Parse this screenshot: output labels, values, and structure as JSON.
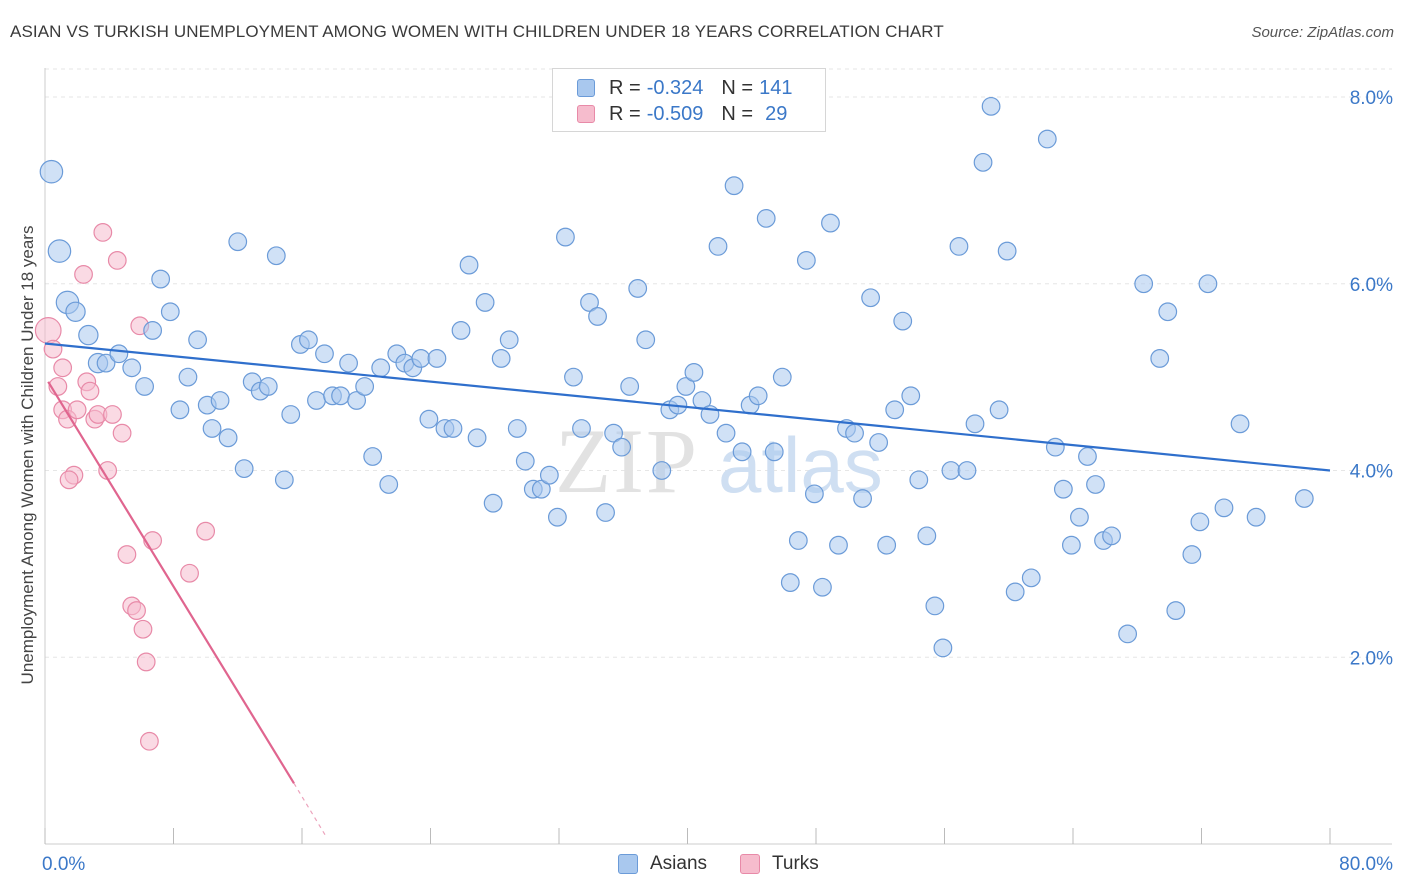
{
  "title": "ASIAN VS TURKISH UNEMPLOYMENT AMONG WOMEN WITH CHILDREN UNDER 18 YEARS CORRELATION CHART",
  "source": "Source: ZipAtlas.com",
  "watermark": {
    "zip": "ZIP",
    "atlas": "atlas"
  },
  "legend": {
    "r_label": "R = ",
    "n_label": "N = ",
    "asians": {
      "r": "-0.324",
      "n": "141"
    },
    "turks": {
      "r": "-0.509",
      "n": "29"
    }
  },
  "colors": {
    "asian_fill": "#a9c8ee",
    "asian_stroke": "#6b9bd8",
    "asian_line": "#2f6fcc",
    "turk_fill": "#f6bccd",
    "turk_stroke": "#e88aa8",
    "turk_line": "#e0658f",
    "axis_text": "#3b78c8"
  },
  "chart_data": {
    "type": "scatter",
    "title": "ASIAN VS TURKISH UNEMPLOYMENT AMONG WOMEN WITH CHILDREN UNDER 18 YEARS CORRELATION CHART",
    "xlabel": "",
    "ylabel": "Unemployment Among Women with Children Under 18 years",
    "xlim": [
      0,
      80
    ],
    "ylim": [
      0,
      8.3
    ],
    "x_tick_labels": [
      "0.0%",
      "80.0%"
    ],
    "y_ticks": [
      2,
      4,
      6,
      8
    ],
    "y_tick_labels": [
      "2.0%",
      "4.0%",
      "6.0%",
      "8.0%"
    ],
    "grid": true,
    "legend_entries": [
      "Asians",
      "Turks"
    ],
    "series": [
      {
        "name": "Asians",
        "trend": {
          "x": [
            0,
            80
          ],
          "y": [
            5.36,
            4.0
          ]
        },
        "points": [
          [
            0.4,
            7.2,
            14
          ],
          [
            0.9,
            6.35,
            14
          ],
          [
            1.4,
            5.8,
            14
          ],
          [
            1.9,
            5.7,
            12
          ],
          [
            2.7,
            5.45,
            12
          ],
          [
            3.3,
            5.15,
            12
          ],
          [
            3.8,
            5.15,
            11
          ],
          [
            4.6,
            5.25,
            11
          ],
          [
            5.4,
            5.1,
            11
          ],
          [
            6.2,
            4.9,
            11
          ],
          [
            6.7,
            5.5,
            11
          ],
          [
            7.2,
            6.05,
            11
          ],
          [
            7.8,
            5.7,
            11
          ],
          [
            8.4,
            4.65,
            11
          ],
          [
            8.9,
            5.0,
            11
          ],
          [
            9.5,
            5.4,
            11
          ],
          [
            10.1,
            4.7,
            11
          ],
          [
            10.4,
            4.45,
            11
          ],
          [
            10.9,
            4.75,
            11
          ],
          [
            11.4,
            4.35,
            11
          ],
          [
            12.0,
            6.45,
            11
          ],
          [
            12.4,
            4.02,
            11
          ],
          [
            12.9,
            4.95,
            11
          ],
          [
            13.4,
            4.85,
            11
          ],
          [
            13.9,
            4.9,
            11
          ],
          [
            14.4,
            6.3,
            11
          ],
          [
            14.9,
            3.9,
            11
          ],
          [
            15.3,
            4.6,
            11
          ],
          [
            15.9,
            5.35,
            11
          ],
          [
            16.4,
            5.4,
            11
          ],
          [
            16.9,
            4.75,
            11
          ],
          [
            17.4,
            5.25,
            11
          ],
          [
            17.9,
            4.8,
            11
          ],
          [
            18.4,
            4.8,
            11
          ],
          [
            18.9,
            5.15,
            11
          ],
          [
            19.4,
            4.75,
            11
          ],
          [
            19.9,
            4.9,
            11
          ],
          [
            20.4,
            4.15,
            11
          ],
          [
            20.9,
            5.1,
            11
          ],
          [
            21.4,
            3.85,
            11
          ],
          [
            21.9,
            5.25,
            11
          ],
          [
            22.4,
            5.15,
            11
          ],
          [
            22.9,
            5.1,
            11
          ],
          [
            23.4,
            5.2,
            11
          ],
          [
            23.9,
            4.55,
            11
          ],
          [
            24.4,
            5.2,
            11
          ],
          [
            24.9,
            4.45,
            11
          ],
          [
            25.4,
            4.45,
            11
          ],
          [
            25.9,
            5.5,
            11
          ],
          [
            26.4,
            6.2,
            11
          ],
          [
            26.9,
            4.35,
            11
          ],
          [
            27.4,
            5.8,
            11
          ],
          [
            27.9,
            3.65,
            11
          ],
          [
            28.4,
            5.2,
            11
          ],
          [
            28.9,
            5.4,
            11
          ],
          [
            29.4,
            4.45,
            11
          ],
          [
            29.9,
            4.1,
            11
          ],
          [
            30.4,
            3.8,
            11
          ],
          [
            30.9,
            3.8,
            11
          ],
          [
            31.4,
            3.95,
            11
          ],
          [
            31.9,
            3.5,
            11
          ],
          [
            32.4,
            6.5,
            11
          ],
          [
            32.9,
            5.0,
            11
          ],
          [
            33.4,
            4.45,
            11
          ],
          [
            33.9,
            5.8,
            11
          ],
          [
            34.4,
            5.65,
            11
          ],
          [
            34.9,
            3.55,
            11
          ],
          [
            35.4,
            4.4,
            11
          ],
          [
            35.9,
            4.25,
            11
          ],
          [
            36.4,
            4.9,
            11
          ],
          [
            36.9,
            5.95,
            11
          ],
          [
            37.4,
            5.4,
            11
          ],
          [
            38.4,
            4.0,
            11
          ],
          [
            38.9,
            4.65,
            11
          ],
          [
            39.4,
            4.7,
            11
          ],
          [
            39.9,
            4.9,
            11
          ],
          [
            40.4,
            5.05,
            11
          ],
          [
            40.9,
            4.75,
            11
          ],
          [
            41.4,
            4.6,
            11
          ],
          [
            41.9,
            6.4,
            11
          ],
          [
            42.4,
            4.4,
            11
          ],
          [
            42.9,
            7.05,
            11
          ],
          [
            43.4,
            4.2,
            11
          ],
          [
            43.9,
            4.7,
            11
          ],
          [
            44.4,
            4.8,
            11
          ],
          [
            44.9,
            6.7,
            11
          ],
          [
            45.4,
            4.2,
            11
          ],
          [
            45.9,
            5.0,
            11
          ],
          [
            46.4,
            2.8,
            11
          ],
          [
            46.9,
            3.25,
            11
          ],
          [
            47.4,
            6.25,
            11
          ],
          [
            47.9,
            3.75,
            11
          ],
          [
            48.4,
            2.75,
            11
          ],
          [
            48.9,
            6.65,
            11
          ],
          [
            49.4,
            3.2,
            11
          ],
          [
            49.9,
            4.45,
            11
          ],
          [
            50.4,
            4.4,
            11
          ],
          [
            50.9,
            3.7,
            11
          ],
          [
            51.4,
            5.85,
            11
          ],
          [
            51.9,
            4.3,
            11
          ],
          [
            52.4,
            3.2,
            11
          ],
          [
            52.9,
            4.65,
            11
          ],
          [
            53.4,
            5.6,
            11
          ],
          [
            53.9,
            4.8,
            11
          ],
          [
            54.4,
            3.9,
            11
          ],
          [
            54.9,
            3.3,
            11
          ],
          [
            55.4,
            2.55,
            11
          ],
          [
            55.9,
            2.1,
            11
          ],
          [
            56.4,
            4.0,
            11
          ],
          [
            56.9,
            6.4,
            11
          ],
          [
            57.4,
            4.0,
            11
          ],
          [
            57.9,
            4.5,
            11
          ],
          [
            58.4,
            7.3,
            11
          ],
          [
            58.9,
            7.9,
            11
          ],
          [
            59.4,
            4.65,
            11
          ],
          [
            59.9,
            6.35,
            11
          ],
          [
            60.4,
            2.7,
            11
          ],
          [
            61.4,
            2.85,
            11
          ],
          [
            62.4,
            7.55,
            11
          ],
          [
            62.9,
            4.25,
            11
          ],
          [
            63.4,
            3.8,
            11
          ],
          [
            63.9,
            3.2,
            11
          ],
          [
            64.4,
            3.5,
            11
          ],
          [
            64.9,
            4.15,
            11
          ],
          [
            65.4,
            3.85,
            11
          ],
          [
            65.9,
            3.25,
            11
          ],
          [
            66.4,
            3.3,
            11
          ],
          [
            67.4,
            2.25,
            11
          ],
          [
            68.4,
            6.0,
            11
          ],
          [
            69.4,
            5.2,
            11
          ],
          [
            69.9,
            5.7,
            11
          ],
          [
            70.4,
            2.5,
            11
          ],
          [
            71.4,
            3.1,
            11
          ],
          [
            71.9,
            3.45,
            11
          ],
          [
            72.4,
            6.0,
            11
          ],
          [
            73.4,
            3.6,
            11
          ],
          [
            74.4,
            4.5,
            11
          ],
          [
            75.4,
            3.5,
            11
          ],
          [
            78.4,
            3.7,
            11
          ]
        ]
      },
      {
        "name": "Turks",
        "trend": {
          "x": [
            0.2,
            15.5
          ],
          "y": [
            4.95,
            0.65
          ]
        },
        "trend_dashed": {
          "x": [
            15.5,
            17.5
          ],
          "y": [
            0.65,
            0.08
          ]
        },
        "points": [
          [
            0.2,
            5.5,
            16
          ],
          [
            0.5,
            5.3,
            11
          ],
          [
            0.8,
            4.9,
            11
          ],
          [
            1.1,
            4.65,
            11
          ],
          [
            1.4,
            4.55,
            11
          ],
          [
            1.8,
            3.95,
            11
          ],
          [
            1.1,
            5.1,
            11
          ],
          [
            2.0,
            4.65,
            11
          ],
          [
            2.4,
            6.1,
            11
          ],
          [
            2.6,
            4.95,
            11
          ],
          [
            2.8,
            4.85,
            11
          ],
          [
            3.1,
            4.55,
            11
          ],
          [
            3.3,
            4.6,
            11
          ],
          [
            3.6,
            6.55,
            11
          ],
          [
            3.9,
            4.0,
            11
          ],
          [
            4.2,
            4.6,
            11
          ],
          [
            4.5,
            6.25,
            11
          ],
          [
            4.8,
            4.4,
            11
          ],
          [
            5.1,
            3.1,
            11
          ],
          [
            5.4,
            2.55,
            11
          ],
          [
            5.7,
            2.5,
            11
          ],
          [
            5.9,
            5.55,
            11
          ],
          [
            6.1,
            2.3,
            11
          ],
          [
            6.3,
            1.95,
            11
          ],
          [
            6.5,
            1.1,
            11
          ],
          [
            6.7,
            3.25,
            11
          ],
          [
            9.0,
            2.9,
            11
          ],
          [
            10.0,
            3.35,
            11
          ],
          [
            1.5,
            3.9,
            11
          ]
        ]
      }
    ]
  }
}
